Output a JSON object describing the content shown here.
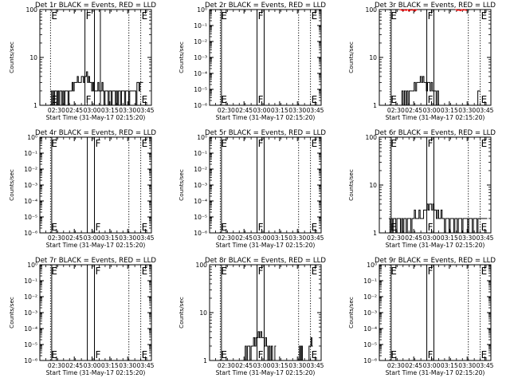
{
  "xtick_labels": [
    "02:30",
    "02:45",
    "03:00",
    "03:15",
    "03:30",
    "03:45"
  ],
  "xlabel": "Start Time (31-May-17 02:15:20)",
  "ylabel": "Counts/sec",
  "colors": {
    "events": "#000000",
    "lld": "#ff0000",
    "background": "#ffffff"
  },
  "chart_data": [
    {
      "title": "Det 1r BLACK = Events, RED = LLD",
      "type": "line",
      "yscale": "linear-log",
      "ylim": [
        1,
        100
      ],
      "yticks": [
        {
          "v": 1,
          "label": "1"
        },
        {
          "v": 10,
          "label": "10"
        },
        {
          "v": 100,
          "label": "100"
        }
      ],
      "solid_lines": [
        "02:54",
        "03:02",
        "03:07"
      ],
      "dotted_lines": [
        "02:25",
        "03:31",
        "03:41"
      ],
      "flags": [
        {
          "t": "02:25",
          "text": "E"
        },
        {
          "t": "02:54",
          "text": "F"
        },
        {
          "t": "03:41",
          "text": "E"
        }
      ],
      "series": [
        {
          "x_start": "02:25",
          "x_end": "03:43",
          "values": [
            2,
            1,
            2,
            1,
            2,
            2,
            1,
            2,
            1,
            2,
            2,
            1,
            2,
            1,
            2,
            2,
            2,
            1,
            2,
            2,
            2,
            3,
            2,
            3,
            3,
            3,
            4,
            3,
            3,
            3,
            4,
            4,
            3,
            4,
            4,
            5,
            3,
            4,
            3,
            3,
            2,
            3,
            2,
            2,
            2,
            2,
            3,
            2,
            2,
            2,
            3,
            2,
            1,
            2,
            2,
            2,
            1,
            2,
            2,
            1,
            2,
            2,
            2,
            1,
            2,
            1,
            2,
            2,
            1,
            2,
            2,
            2,
            1,
            2,
            2,
            2,
            1,
            2,
            2,
            2,
            2,
            2,
            2,
            1,
            3,
            3,
            2,
            3,
            3,
            3
          ]
        }
      ],
      "lld_series": []
    },
    {
      "title": "Det 2r BLACK = Events, RED = LLD",
      "type": "line",
      "yscale": "log",
      "ylim": [
        1e-06,
        1
      ],
      "yticks": [
        {
          "v": 1,
          "label": "10⁰"
        },
        {
          "v": 0.1,
          "label": "10⁻¹"
        },
        {
          "v": 0.01,
          "label": "10⁻²"
        },
        {
          "v": 0.001,
          "label": "10⁻³"
        },
        {
          "v": 0.0001,
          "label": "10⁻⁴"
        },
        {
          "v": 1e-05,
          "label": "10⁻⁵"
        },
        {
          "v": 1e-06,
          "label": "10⁻⁶"
        }
      ],
      "solid_lines": [
        "02:26",
        "02:56",
        "03:02"
      ],
      "dotted_lines": [
        "02:25",
        "03:31",
        "03:41"
      ],
      "flags": [
        {
          "t": "02:25",
          "text": "E"
        },
        {
          "t": "02:56",
          "text": "F"
        },
        {
          "t": "03:41",
          "text": "E"
        }
      ],
      "series": [],
      "lld_series": []
    },
    {
      "title": "Det 3r BLACK = Events, RED = LLD",
      "type": "line",
      "yscale": "log",
      "ylim": [
        1,
        100
      ],
      "yticks": [
        {
          "v": 1,
          "label": "1"
        },
        {
          "v": 10,
          "label": "10"
        },
        {
          "v": 100,
          "label": "100"
        }
      ],
      "solid_lines": [
        "02:26",
        "02:56",
        "03:02"
      ],
      "dotted_lines": [
        "02:25",
        "03:31",
        "03:41"
      ],
      "flags": [
        {
          "t": "02:25",
          "text": "E"
        },
        {
          "t": "02:56",
          "text": "F"
        },
        {
          "t": "03:41",
          "text": "E"
        }
      ],
      "series": [
        {
          "x_start": "02:33",
          "x_end": "03:09",
          "values": [
            1,
            1,
            2,
            1,
            2,
            1,
            2,
            1,
            2,
            2,
            2,
            2,
            3,
            2,
            3,
            3,
            3,
            4,
            3,
            4,
            3,
            3,
            2,
            3,
            3,
            2,
            3,
            2,
            2,
            2,
            1,
            2,
            1,
            1,
            1
          ]
        },
        {
          "x_start": "03:38",
          "x_end": "03:41",
          "values": [
            1,
            1,
            2,
            2,
            2,
            2
          ]
        }
      ],
      "lld_series": [
        {
          "x_start": "02:33",
          "x_end": "02:48",
          "values": [
            100,
            97,
            95,
            99,
            96,
            100,
            94,
            98,
            97,
            100,
            95,
            99
          ]
        },
        {
          "x_start": "03:20",
          "x_end": "03:30",
          "values": [
            100,
            96,
            98,
            95,
            100,
            97,
            99,
            96
          ]
        }
      ]
    },
    {
      "title": "Det 4r BLACK = Events, RED = LLD",
      "type": "line",
      "yscale": "log",
      "ylim": [
        1e-06,
        1
      ],
      "yticks": [
        {
          "v": 1,
          "label": "10⁰"
        },
        {
          "v": 0.1,
          "label": "10⁻¹"
        },
        {
          "v": 0.01,
          "label": "10⁻²"
        },
        {
          "v": 0.001,
          "label": "10⁻³"
        },
        {
          "v": 0.0001,
          "label": "10⁻⁴"
        },
        {
          "v": 1e-05,
          "label": "10⁻⁵"
        },
        {
          "v": 1e-06,
          "label": "10⁻⁶"
        }
      ],
      "solid_lines": [
        "02:26",
        "02:56",
        "03:02"
      ],
      "dotted_lines": [
        "02:25",
        "03:31",
        "03:41"
      ],
      "flags": [
        {
          "t": "02:25",
          "text": "E"
        },
        {
          "t": "03:02",
          "text": "F"
        },
        {
          "t": "03:41",
          "text": "E"
        }
      ],
      "series": [],
      "lld_series": []
    },
    {
      "title": "Det 5r BLACK = Events, RED = LLD",
      "type": "line",
      "yscale": "log",
      "ylim": [
        1e-06,
        1
      ],
      "yticks": [
        {
          "v": 1,
          "label": "10⁰"
        },
        {
          "v": 0.1,
          "label": "10⁻¹"
        },
        {
          "v": 0.01,
          "label": "10⁻²"
        },
        {
          "v": 0.001,
          "label": "10⁻³"
        },
        {
          "v": 0.0001,
          "label": "10⁻⁴"
        },
        {
          "v": 1e-05,
          "label": "10⁻⁵"
        },
        {
          "v": 1e-06,
          "label": "10⁻⁶"
        }
      ],
      "solid_lines": [
        "02:26",
        "02:56",
        "03:02"
      ],
      "dotted_lines": [
        "02:25",
        "03:31",
        "03:41"
      ],
      "flags": [
        {
          "t": "02:25",
          "text": "E"
        },
        {
          "t": "02:56",
          "text": "F"
        },
        {
          "t": "03:41",
          "text": "E"
        }
      ],
      "series": [],
      "lld_series": []
    },
    {
      "title": "Det 6r BLACK = Events, RED = LLD",
      "type": "line",
      "yscale": "log",
      "ylim": [
        1,
        100
      ],
      "yticks": [
        {
          "v": 1,
          "label": "1"
        },
        {
          "v": 10,
          "label": "10"
        },
        {
          "v": 100,
          "label": "100"
        }
      ],
      "solid_lines": [
        "02:26",
        "02:56",
        "03:02"
      ],
      "dotted_lines": [
        "02:25",
        "03:31",
        "03:41"
      ],
      "flags": [
        {
          "t": "02:25",
          "text": "E"
        },
        {
          "t": "02:56",
          "text": "F"
        },
        {
          "t": "03:41",
          "text": "E"
        }
      ],
      "series": [
        {
          "x_start": "02:24",
          "x_end": "03:47",
          "values": [
            2,
            1,
            2,
            1,
            2,
            2,
            1,
            2,
            2,
            2,
            1,
            2,
            1,
            2,
            2,
            1,
            2,
            2,
            2,
            1,
            2,
            2,
            3,
            2,
            2,
            2,
            3,
            2,
            2,
            2,
            3,
            3,
            3,
            4,
            3,
            4,
            4,
            3,
            4,
            3,
            3,
            2,
            3,
            2,
            2,
            3,
            2,
            2,
            1,
            2,
            2,
            2,
            1,
            2,
            2,
            2,
            1,
            2,
            2,
            1,
            2,
            2,
            2,
            1,
            2,
            2,
            2,
            2,
            1,
            2,
            2,
            2,
            1,
            2,
            2,
            2,
            1,
            2,
            2,
            2,
            2,
            2,
            2,
            2,
            2
          ]
        }
      ],
      "lld_series": []
    },
    {
      "title": "Det 7r BLACK = Events, RED = LLD",
      "type": "line",
      "yscale": "log",
      "ylim": [
        1e-06,
        1
      ],
      "yticks": [
        {
          "v": 1,
          "label": "10⁰"
        },
        {
          "v": 0.1,
          "label": "10⁻¹"
        },
        {
          "v": 0.01,
          "label": "10⁻²"
        },
        {
          "v": 0.001,
          "label": "10⁻³"
        },
        {
          "v": 0.0001,
          "label": "10⁻⁴"
        },
        {
          "v": 1e-05,
          "label": "10⁻⁵"
        },
        {
          "v": 1e-06,
          "label": "10⁻⁶"
        }
      ],
      "solid_lines": [
        "02:26",
        "02:56",
        "03:02"
      ],
      "dotted_lines": [
        "02:25",
        "03:31",
        "03:41"
      ],
      "flags": [
        {
          "t": "02:25",
          "text": "E"
        },
        {
          "t": "03:02",
          "text": "F"
        },
        {
          "t": "03:41",
          "text": "E"
        }
      ],
      "series": [],
      "lld_series": []
    },
    {
      "title": "Det 8r BLACK = Events, RED = LLD",
      "type": "line",
      "yscale": "log",
      "ylim": [
        1,
        100
      ],
      "yticks": [
        {
          "v": 1,
          "label": "1"
        },
        {
          "v": 10,
          "label": "10"
        },
        {
          "v": 100,
          "label": "100"
        }
      ],
      "solid_lines": [
        "02:26",
        "02:56",
        "03:02"
      ],
      "dotted_lines": [
        "02:25",
        "03:31",
        "03:41"
      ],
      "flags": [
        {
          "t": "02:25",
          "text": "E"
        },
        {
          "t": "02:56",
          "text": "F"
        },
        {
          "t": "03:41",
          "text": "E"
        }
      ],
      "series": [
        {
          "x_start": "02:45",
          "x_end": "03:12",
          "values": [
            1,
            2,
            1,
            2,
            2,
            1,
            2,
            2,
            3,
            2,
            3,
            3,
            4,
            3,
            4,
            3,
            3,
            2,
            3,
            2,
            1,
            2,
            1,
            2,
            1,
            1,
            2
          ]
        },
        {
          "x_start": "03:31",
          "x_end": "03:35",
          "values": [
            1,
            2,
            1,
            2,
            1
          ]
        },
        {
          "x_start": "03:39",
          "x_end": "03:43",
          "values": [
            1,
            2,
            2,
            3,
            2
          ]
        }
      ],
      "lld_series": []
    },
    {
      "title": "Det 9r BLACK = Events, RED = LLD",
      "type": "line",
      "yscale": "log",
      "ylim": [
        1e-06,
        1
      ],
      "yticks": [
        {
          "v": 1,
          "label": "10⁰"
        },
        {
          "v": 0.1,
          "label": "10⁻¹"
        },
        {
          "v": 0.01,
          "label": "10⁻²"
        },
        {
          "v": 0.001,
          "label": "10⁻³"
        },
        {
          "v": 0.0001,
          "label": "10⁻⁴"
        },
        {
          "v": 1e-05,
          "label": "10⁻⁵"
        },
        {
          "v": 1e-06,
          "label": "10⁻⁶"
        }
      ],
      "solid_lines": [
        "02:26",
        "02:56",
        "03:02"
      ],
      "dotted_lines": [
        "02:25",
        "03:31",
        "03:41"
      ],
      "flags": [
        {
          "t": "02:25",
          "text": "E"
        },
        {
          "t": "02:56",
          "text": "F"
        },
        {
          "t": "03:41",
          "text": "E"
        }
      ],
      "series": [],
      "lld_series": []
    }
  ]
}
